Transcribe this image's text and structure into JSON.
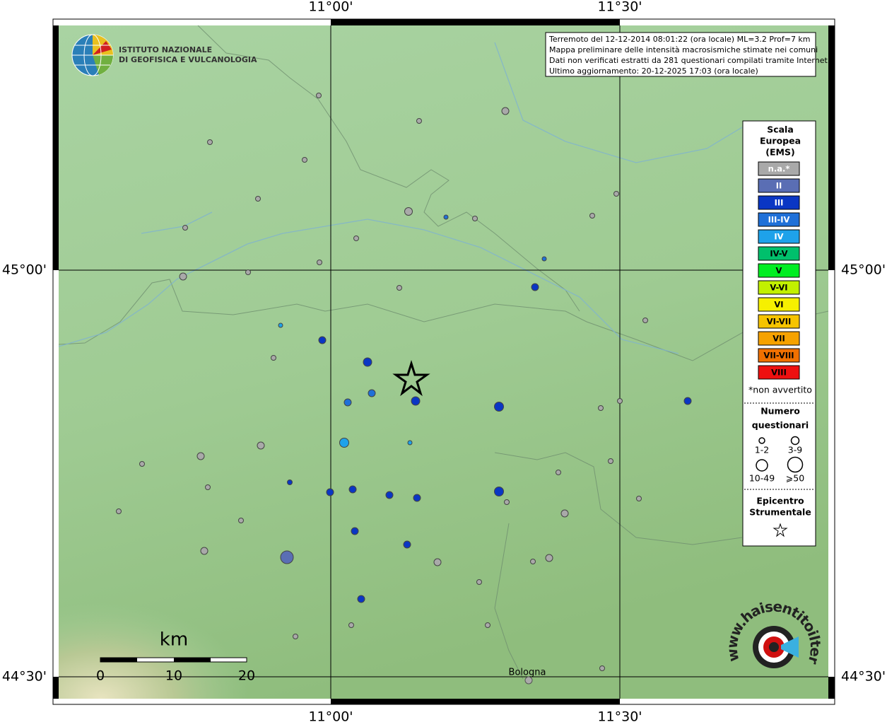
{
  "axes": {
    "lon": [
      "11°00'",
      "11°30'"
    ],
    "lat": [
      "45°00'",
      "44°30'"
    ]
  },
  "header": {
    "lines": [
      "Terremoto del 12-12-2014 08:01:22 (ora locale) ML=3.2 Prof=7 km",
      "Mappa preliminare delle intensità macrosismiche stimate nei comuni",
      "Dati non verificati estratti da 281 questionari compilati tramite Internet.",
      "Ultimo aggiornamento: 20-12-2025 17:03 (ora locale)"
    ]
  },
  "logo": {
    "lines": [
      "ISTITUTO NAZIONALE",
      "DI GEOFISICA E VULCANOLOGIA"
    ]
  },
  "legend": {
    "title": [
      "Scala",
      "Europea",
      "(EMS)"
    ],
    "classes": [
      {
        "label": "n.a.*",
        "color": "#a9a9a9"
      },
      {
        "label": "II",
        "color": "#5a6eb4"
      },
      {
        "label": "III",
        "color": "#0a36c4"
      },
      {
        "label": "III-IV",
        "color": "#1f70d8"
      },
      {
        "label": "IV",
        "color": "#1ea2ea"
      },
      {
        "label": "IV-V",
        "color": "#00c06c"
      },
      {
        "label": "V",
        "color": "#00ee22"
      },
      {
        "label": "V-VI",
        "color": "#c2f000"
      },
      {
        "label": "VI",
        "color": "#f6f000"
      },
      {
        "label": "VI-VII",
        "color": "#f6c400"
      },
      {
        "label": "VII",
        "color": "#f6a200"
      },
      {
        "label": "VII-VIII",
        "color": "#f07000"
      },
      {
        "label": "VIII",
        "color": "#ee1010"
      }
    ],
    "note": "*non avvertito",
    "count_title": [
      "Numero",
      "questionari"
    ],
    "counts": [
      "1-2",
      "3-9",
      "10-49",
      "⩾50"
    ],
    "epicenter_title": [
      "Epicentro",
      "Strumentale"
    ]
  },
  "scale_bar": {
    "unit": "km",
    "ticks": [
      "0",
      "10",
      "20"
    ]
  },
  "places": [
    "Bologna"
  ],
  "watermark": "www.haisentitoilterremoto.it"
}
